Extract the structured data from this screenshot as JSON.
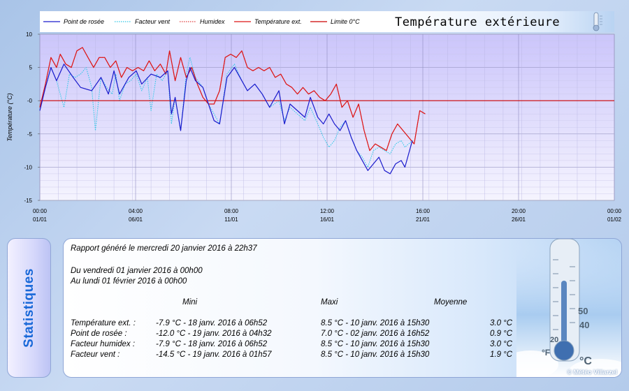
{
  "chart_data": {
    "type": "line",
    "title": "Température extérieure",
    "ylabel": "Température (°C)",
    "ylim": [
      -15,
      10
    ],
    "yticks": [
      10,
      5,
      0,
      -5,
      -10,
      -15
    ],
    "ytick_labels": [
      "10",
      "5",
      "-0",
      "-5",
      "-10",
      "-15"
    ],
    "xlim": [
      0,
      31
    ],
    "x_unit": "days since 01/01/2016 00:00",
    "xticks": [
      {
        "x": 0,
        "time": "00:00",
        "date": "01/01"
      },
      {
        "x": 5.167,
        "time": "04:00",
        "date": "06/01"
      },
      {
        "x": 10.333,
        "time": "08:00",
        "date": "11/01"
      },
      {
        "x": 15.5,
        "time": "12:00",
        "date": "16/01"
      },
      {
        "x": 20.667,
        "time": "16:00",
        "date": "21/01"
      },
      {
        "x": 25.833,
        "time": "20:00",
        "date": "26/01"
      },
      {
        "x": 31,
        "time": "00:00",
        "date": "01/02"
      }
    ],
    "legend": [
      "Point de rosée",
      "Facteur vent",
      "Humidex",
      "Température ext.",
      "Limite 0°C"
    ],
    "legend_position": "top",
    "series": [
      {
        "name": "Point de rosée",
        "color": "#1a1acc",
        "style": "solid",
        "x": [
          0,
          0.3,
          0.6,
          0.9,
          1.3,
          1.8,
          2.2,
          2.8,
          3.3,
          3.7,
          4.0,
          4.3,
          4.8,
          5.2,
          5.5,
          6.0,
          6.5,
          6.9,
          7.1,
          7.3,
          7.6,
          7.9,
          8.1,
          8.4,
          8.8,
          9.1,
          9.4,
          9.7,
          10.1,
          10.5,
          10.9,
          11.2,
          11.6,
          12.0,
          12.4,
          12.9,
          13.2,
          13.5,
          13.9,
          14.3,
          14.6,
          15.0,
          15.3,
          15.6,
          15.9,
          16.2,
          16.5,
          16.8,
          17.1,
          17.4,
          17.7,
          18.0,
          18.3,
          18.6,
          18.9,
          19.2,
          19.5,
          19.7,
          20.1
        ],
        "y": [
          -1.5,
          2.0,
          5.0,
          3.0,
          5.5,
          3.5,
          2.0,
          1.5,
          3.5,
          1.0,
          4.5,
          1.0,
          3.5,
          4.5,
          2.5,
          4.0,
          3.5,
          4.5,
          -2.0,
          0.5,
          -4.5,
          3.0,
          5.0,
          3.0,
          2.0,
          -0.5,
          -3.0,
          -3.5,
          3.5,
          5.0,
          3.0,
          1.5,
          2.5,
          1.0,
          -1.0,
          1.5,
          -3.5,
          -0.5,
          -1.5,
          -2.5,
          0.5,
          -2.5,
          -3.5,
          -2.0,
          -3.5,
          -4.5,
          -3.0,
          -5.5,
          -7.5,
          -9.0,
          -10.5,
          -9.5,
          -8.5,
          -10.5,
          -11.0,
          -9.5,
          -9.0,
          -10.0,
          -6.0
        ]
      },
      {
        "name": "Facteur vent",
        "color": "#30c8e6",
        "style": "dotted",
        "x": [
          0,
          0.3,
          0.6,
          0.9,
          1.1,
          1.3,
          1.6,
          1.9,
          2.2,
          2.5,
          2.8,
          3.0,
          3.3,
          3.6,
          3.9,
          4.1,
          4.3,
          4.6,
          4.9,
          5.2,
          5.5,
          5.8,
          6.0,
          6.3,
          6.6,
          6.9,
          7.1,
          7.3,
          7.6,
          7.9,
          8.1,
          8.4,
          8.8,
          9.1,
          9.4,
          9.7,
          10.1,
          10.5,
          10.9,
          11.2,
          11.6,
          12.0,
          12.4,
          12.9,
          13.2,
          13.5,
          13.9,
          14.3,
          14.6,
          15.0,
          15.3,
          15.6,
          15.9,
          16.2,
          16.5,
          16.8,
          17.1,
          17.4,
          17.7,
          18.0,
          18.3,
          18.6,
          18.9,
          19.2,
          19.5,
          19.7,
          20.1
        ],
        "y": [
          -1.0,
          2.0,
          5.0,
          3.0,
          1.0,
          -1.0,
          4.0,
          3.5,
          4.0,
          5.0,
          2.0,
          -4.5,
          3.5,
          2.0,
          1.0,
          4.0,
          0.0,
          2.5,
          3.0,
          4.0,
          1.5,
          3.5,
          -1.5,
          4.0,
          3.0,
          4.5,
          -3.5,
          0.5,
          -4.5,
          4.0,
          6.5,
          3.5,
          2.0,
          -0.5,
          -2.0,
          -3.5,
          4.0,
          5.5,
          3.0,
          1.5,
          2.5,
          1.0,
          -1.0,
          0.0,
          -3.0,
          -1.0,
          -2.0,
          -3.0,
          -1.0,
          -3.5,
          -5.5,
          -7.0,
          -6.0,
          -4.0,
          -3.0,
          -5.5,
          -7.5,
          -8.5,
          -10.0,
          -7.5,
          -7.0,
          -7.5,
          -8.0,
          -6.5,
          -6.0,
          -7.0,
          -6.0
        ]
      },
      {
        "name": "Humidex",
        "color": "#e04040",
        "style": "dotted",
        "x": [
          0,
          0.3,
          0.6,
          0.9,
          1.1,
          1.4,
          1.7,
          2.0,
          2.3,
          2.6,
          2.9,
          3.2,
          3.5,
          3.8,
          4.1,
          4.4,
          4.7,
          5.0,
          5.3,
          5.6,
          5.9,
          6.2,
          6.5,
          6.8,
          7.0,
          7.3,
          7.6,
          7.9,
          8.2,
          8.5,
          8.8,
          9.1,
          9.4,
          9.7,
          10.0,
          10.3,
          10.6,
          10.9,
          11.2,
          11.5,
          11.8,
          12.1,
          12.4,
          12.7,
          13.0,
          13.3,
          13.6,
          13.9,
          14.2,
          14.5,
          14.8,
          15.1,
          15.4,
          15.7,
          16.0,
          16.3,
          16.6,
          16.9,
          17.2,
          17.5,
          17.8,
          18.1,
          18.4,
          18.7,
          19.0,
          19.3,
          19.6,
          19.9,
          20.2,
          20.5,
          20.8
        ],
        "y": [
          -1.0,
          2.5,
          6.5,
          5.0,
          7.0,
          5.5,
          5.0,
          7.5,
          8.0,
          6.5,
          5.0,
          6.5,
          6.5,
          5.0,
          6.0,
          3.5,
          5.0,
          4.5,
          5.0,
          4.5,
          6.0,
          4.5,
          5.5,
          4.0,
          7.5,
          3.0,
          6.5,
          3.5,
          5.0,
          2.5,
          0.5,
          -0.5,
          -0.5,
          1.5,
          6.5,
          7.0,
          6.5,
          7.5,
          5.0,
          4.5,
          5.0,
          4.5,
          5.0,
          3.5,
          4.0,
          2.5,
          2.0,
          1.0,
          2.0,
          1.0,
          1.5,
          0.5,
          0.0,
          1.0,
          2.5,
          -1.0,
          0.0,
          -2.5,
          -0.5,
          -4.5,
          -7.5,
          -6.5,
          -7.0,
          -7.5,
          -5.0,
          -3.5,
          -4.5,
          -5.5,
          -6.5,
          -1.5,
          -2.0
        ]
      },
      {
        "name": "Température ext.",
        "color": "#dd1515",
        "style": "solid",
        "x": [
          0,
          0.3,
          0.6,
          0.9,
          1.1,
          1.4,
          1.7,
          2.0,
          2.3,
          2.6,
          2.9,
          3.2,
          3.5,
          3.8,
          4.1,
          4.4,
          4.7,
          5.0,
          5.3,
          5.6,
          5.9,
          6.2,
          6.5,
          6.8,
          7.0,
          7.3,
          7.6,
          7.9,
          8.2,
          8.5,
          8.8,
          9.1,
          9.4,
          9.7,
          10.0,
          10.3,
          10.6,
          10.9,
          11.2,
          11.5,
          11.8,
          12.1,
          12.4,
          12.7,
          13.0,
          13.3,
          13.6,
          13.9,
          14.2,
          14.5,
          14.8,
          15.1,
          15.4,
          15.7,
          16.0,
          16.3,
          16.6,
          16.9,
          17.2,
          17.5,
          17.8,
          18.1,
          18.4,
          18.7,
          19.0,
          19.3,
          19.6,
          19.9,
          20.2,
          20.5,
          20.8
        ],
        "y": [
          -1.0,
          2.5,
          6.5,
          5.0,
          7.0,
          5.5,
          5.0,
          7.5,
          8.0,
          6.5,
          5.0,
          6.5,
          6.5,
          5.0,
          6.0,
          3.5,
          5.0,
          4.5,
          5.0,
          4.5,
          6.0,
          4.5,
          5.5,
          4.0,
          7.5,
          3.0,
          6.5,
          3.5,
          5.0,
          2.5,
          0.5,
          -0.5,
          -0.5,
          1.5,
          6.5,
          7.0,
          6.5,
          7.5,
          5.0,
          4.5,
          5.0,
          4.5,
          5.0,
          3.5,
          4.0,
          2.5,
          2.0,
          1.0,
          2.0,
          1.0,
          1.5,
          0.5,
          0.0,
          1.0,
          2.5,
          -1.0,
          0.0,
          -2.5,
          -0.5,
          -4.5,
          -7.5,
          -6.5,
          -7.0,
          -7.5,
          -5.0,
          -3.5,
          -4.5,
          -5.5,
          -6.5,
          -1.5,
          -2.0
        ]
      },
      {
        "name": "Limite 0°C",
        "color": "#cc0000",
        "style": "solid",
        "x": [
          0,
          31
        ],
        "y": [
          0,
          0
        ]
      }
    ]
  },
  "stats": {
    "side_label": "Statistiques",
    "report_line": "Rapport généré le mercredi 20 janvier 2016 à 22h37",
    "period_from": "Du vendredi 01 janvier 2016 à 00h00",
    "period_to": "Au lundi 01 février 2016 à 00h00",
    "headers": {
      "min": "Mini",
      "max": "Maxi",
      "avg": "Moyenne"
    },
    "rows": [
      {
        "label": "Température ext. :",
        "min": "-7.9 °C - 18 janv. 2016 à 06h52",
        "max": "8.5 °C - 10 janv. 2016 à 15h30",
        "avg": "3.0 °C"
      },
      {
        "label": "Point de rosée :",
        "min": "-12.0 °C - 19 janv. 2016 à 04h32",
        "max": "7.0 °C - 02 janv. 2016 à 16h52",
        "avg": "0.9 °C"
      },
      {
        "label": "Facteur humidex :",
        "min": "-7.9 °C - 18 janv. 2016 à 06h52",
        "max": "8.5 °C - 10 janv. 2016 à 15h30",
        "avg": "3.0 °C"
      },
      {
        "label": "Facteur vent :",
        "min": "-14.5 °C - 19 janv. 2016 à 01h57",
        "max": "8.5 °C - 10 janv. 2016 à 15h30",
        "avg": "1.9 °C"
      }
    ],
    "deco_label_f": "°F",
    "deco_label_c": "°C",
    "deco_numbers": [
      "50",
      "40",
      "20"
    ],
    "copyright": "© Météo Villarzel"
  },
  "icons": {
    "header_thermometer": "thermometer-icon",
    "stats_thermometer": "thermometer-icon"
  }
}
